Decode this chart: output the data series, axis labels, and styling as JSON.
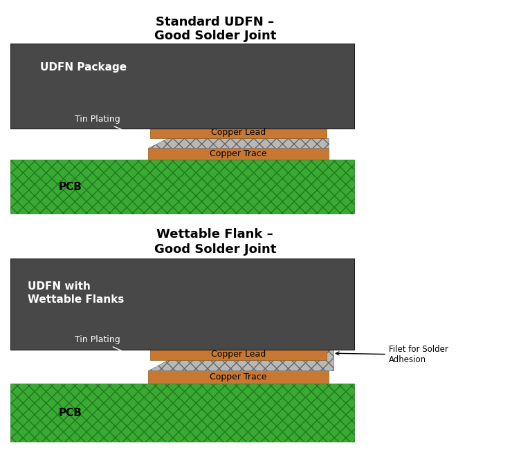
{
  "title1": "Standard UDFN –",
  "title1b": "Good Solder Joint",
  "title2": "Wettable Flank –",
  "title2b": "Good Solder Joint",
  "bg_color": "#ffffff",
  "dark_pkg": "#484848",
  "pcb_green": "#3aaa35",
  "pcb_green_edge": "#1e7a1a",
  "copper": "#c87832",
  "copper_edge": "#8b5a1a",
  "solder_face": "#b8b8b8",
  "solder_edge": "#666666",
  "title_fontsize": 13,
  "label_fontsize": 11,
  "small_fontsize": 9
}
